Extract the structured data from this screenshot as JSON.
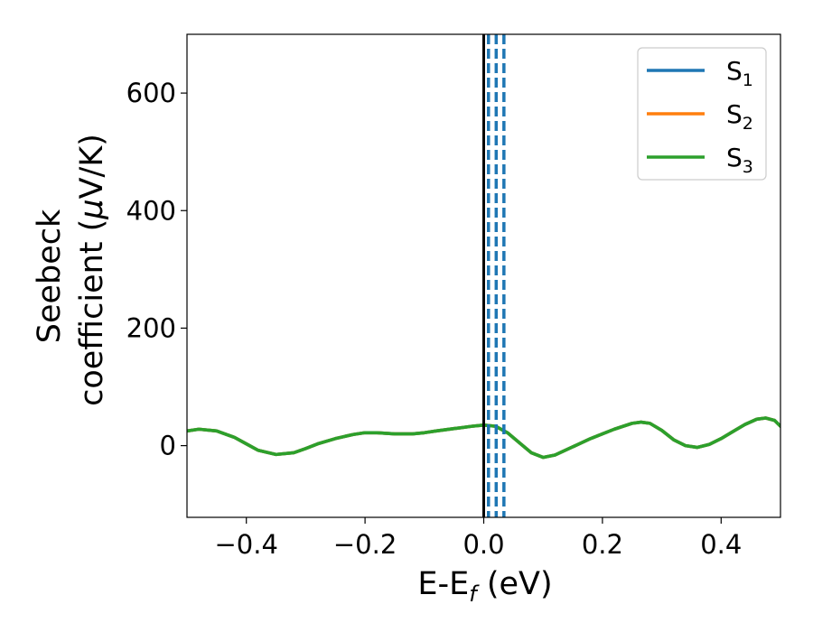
{
  "chart_data": {
    "type": "line",
    "title": "",
    "xlabel_main": "E-E",
    "xlabel_sub": "f",
    "xlabel_rest": " (eV)",
    "ylabel_line1": "Seebeck",
    "ylabel_line2_pre": "coefficient  (",
    "ylabel_mu": "μ",
    "ylabel_line2_post": "V/K)",
    "xlim": [
      -0.5,
      0.5
    ],
    "ylim": [
      -122,
      700
    ],
    "x_ticks": [
      -0.4,
      -0.2,
      0.0,
      0.2,
      0.4
    ],
    "x_tick_labels": [
      "−0.4",
      "−0.2",
      "0.0",
      "0.2",
      "0.4"
    ],
    "y_ticks": [
      0,
      200,
      400,
      600
    ],
    "y_tick_labels": [
      "0",
      "200",
      "400",
      "600"
    ],
    "grid": false,
    "legend_position": "top-right",
    "vertical_lines": {
      "solid": [
        {
          "x": 0.0,
          "color": "#000000"
        }
      ],
      "dashed": [
        {
          "x": 0.008,
          "color": "#1f77b4"
        },
        {
          "x": 0.021,
          "color": "#1f77b4"
        },
        {
          "x": 0.034,
          "color": "#1f77b4"
        }
      ]
    },
    "x": [
      -0.5,
      -0.48,
      -0.45,
      -0.42,
      -0.4,
      -0.38,
      -0.35,
      -0.32,
      -0.3,
      -0.28,
      -0.25,
      -0.22,
      -0.2,
      -0.18,
      -0.15,
      -0.12,
      -0.1,
      -0.08,
      -0.05,
      -0.02,
      0.0,
      0.02,
      0.04,
      0.06,
      0.08,
      0.1,
      0.12,
      0.15,
      0.18,
      0.2,
      0.22,
      0.25,
      0.265,
      0.28,
      0.3,
      0.32,
      0.34,
      0.36,
      0.38,
      0.4,
      0.42,
      0.44,
      0.46,
      0.475,
      0.49,
      0.5
    ],
    "series": [
      {
        "name_main": "S",
        "name_sub": "1",
        "color": "#1f77b4",
        "values": [
          25,
          28,
          25,
          14,
          3,
          -8,
          -15,
          -12,
          -5,
          3,
          12,
          19,
          22,
          22,
          20,
          20,
          22,
          25,
          29,
          33,
          35,
          33,
          22,
          5,
          -12,
          -20,
          -16,
          -2,
          12,
          20,
          28,
          38,
          40,
          38,
          26,
          10,
          0,
          -3,
          2,
          12,
          24,
          36,
          45,
          47,
          43,
          33
        ]
      },
      {
        "name_main": "S",
        "name_sub": "2",
        "color": "#ff7f0e",
        "values": [
          25,
          28,
          25,
          14,
          3,
          -8,
          -15,
          -12,
          -5,
          3,
          12,
          19,
          22,
          22,
          20,
          20,
          22,
          25,
          29,
          33,
          35,
          33,
          22,
          5,
          -12,
          -20,
          -16,
          -2,
          12,
          20,
          28,
          38,
          40,
          38,
          26,
          10,
          0,
          -3,
          2,
          12,
          24,
          36,
          45,
          47,
          43,
          33
        ]
      },
      {
        "name_main": "S",
        "name_sub": "3",
        "color": "#2ca02c",
        "values": [
          25,
          28,
          25,
          14,
          3,
          -8,
          -15,
          -12,
          -5,
          3,
          12,
          19,
          22,
          22,
          20,
          20,
          22,
          25,
          29,
          33,
          35,
          33,
          22,
          5,
          -12,
          -20,
          -16,
          -2,
          12,
          20,
          28,
          38,
          40,
          38,
          26,
          10,
          0,
          -3,
          2,
          12,
          24,
          36,
          45,
          47,
          43,
          33
        ]
      }
    ]
  }
}
